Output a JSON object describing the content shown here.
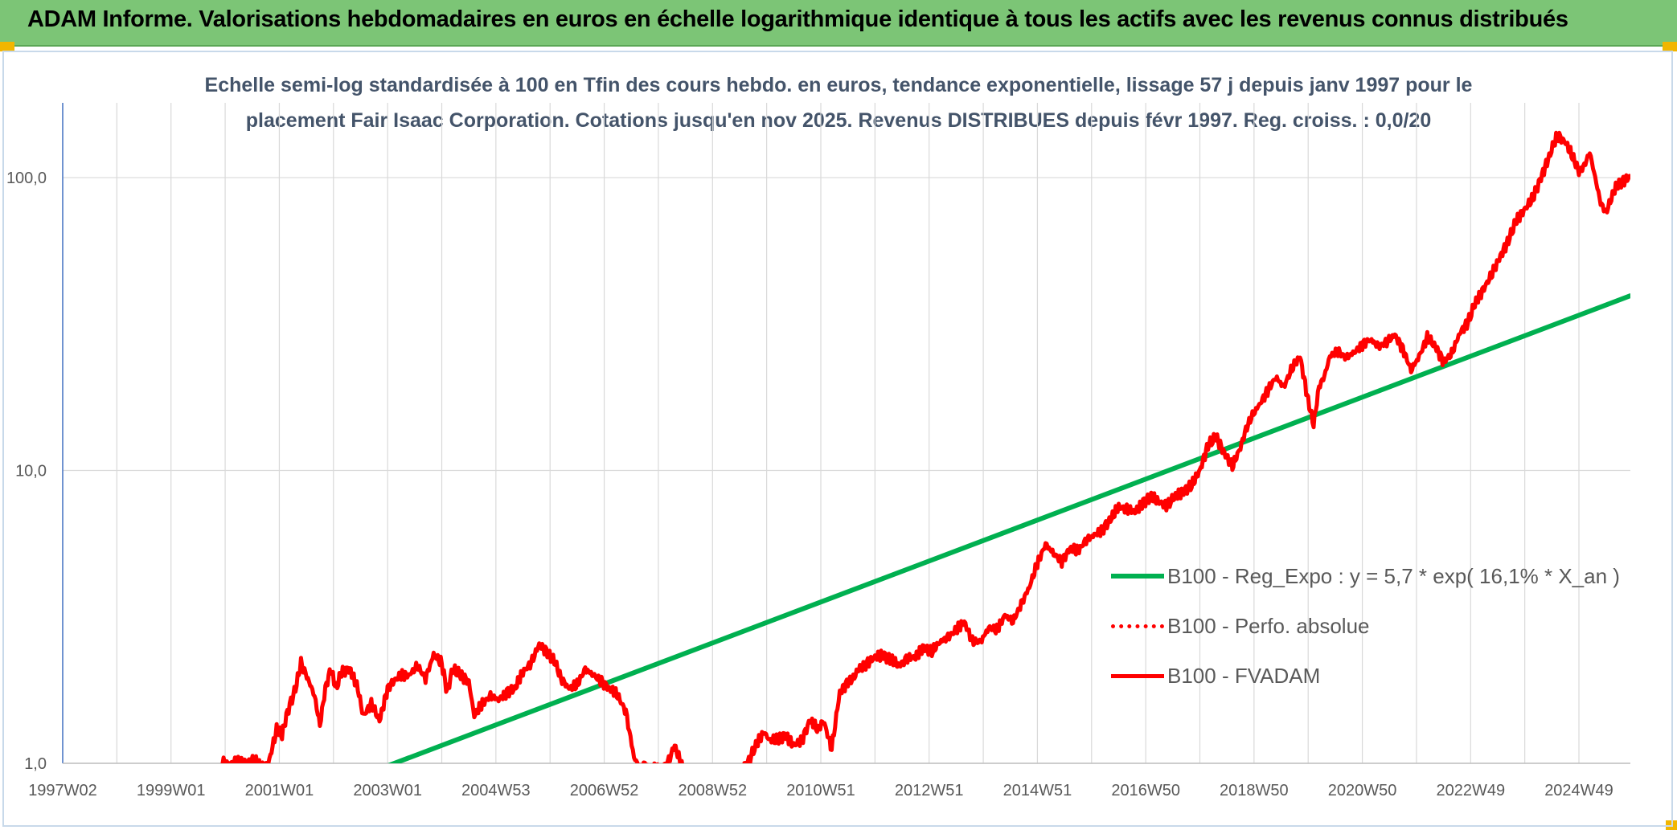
{
  "banner": {
    "title": "ADAM Informe. Valorisations hebdomadaires en euros en échelle logarithmique identique à tous les actifs avec les revenus connus distribués"
  },
  "colors": {
    "banner_bg": "#7cc576",
    "trend": "#00b050",
    "series": "#ff0000",
    "grid": "#d9d9d9",
    "axis": "#4472c4",
    "corner": "#f2b600"
  },
  "chart_data": {
    "type": "line",
    "title_lines": [
      "Echelle semi-log standardisée à 100 en Tfin des cours hebdo. en euros, tendance exponentielle, lissage 57 j depuis janv 1997 pour le",
      "placement Fair Isaac Corporation.  Cotations jusqu'en nov 2025. Revenus DISTRIBUES depuis févr 1997.  Reg. croiss. : 0,0/20"
    ],
    "y_scale": "log",
    "ylim": [
      1,
      180
    ],
    "y_ticks": [
      {
        "value": 1,
        "label": "1,0"
      },
      {
        "value": 10,
        "label": "10,0"
      },
      {
        "value": 100,
        "label": "100,0"
      }
    ],
    "xlim": [
      1997.0,
      2025.95
    ],
    "x_ticks": [
      {
        "value": 1997.0,
        "label": "1997W02"
      },
      {
        "value": 1999.0,
        "label": "1999W01"
      },
      {
        "value": 2001.0,
        "label": "2001W01"
      },
      {
        "value": 2003.0,
        "label": "2003W01"
      },
      {
        "value": 2005.0,
        "label": "2004W53"
      },
      {
        "value": 2007.0,
        "label": "2006W52"
      },
      {
        "value": 2009.0,
        "label": "2008W52"
      },
      {
        "value": 2011.0,
        "label": "2010W51"
      },
      {
        "value": 2013.0,
        "label": "2012W51"
      },
      {
        "value": 2015.0,
        "label": "2014W51"
      },
      {
        "value": 2017.0,
        "label": "2016W50"
      },
      {
        "value": 2019.0,
        "label": "2018W50"
      },
      {
        "value": 2021.0,
        "label": "2020W50"
      },
      {
        "value": 2023.0,
        "label": "2022W49"
      },
      {
        "value": 2025.0,
        "label": "2024W49"
      }
    ],
    "legend_position": "right",
    "series": [
      {
        "name": "B100 - Reg_Expo : y = 5,7 * exp( 16,1% *  X_an )",
        "style": "solid-thick",
        "color": "#00b050",
        "x": [
          2003.0,
          2025.95
        ],
        "values": [
          0.98,
          39.5
        ]
      },
      {
        "name": "B100 - Perfo. absolue",
        "style": "dotted",
        "color": "#ff0000",
        "x": [],
        "values": []
      },
      {
        "name": "B100 - FVADAM",
        "style": "solid",
        "color": "#ff0000",
        "x": [
          1999.95,
          2000.05,
          2000.2,
          2000.4,
          2000.55,
          2000.65,
          2000.8,
          2000.95,
          2001.05,
          2001.15,
          2001.3,
          2001.4,
          2001.55,
          2001.65,
          2001.75,
          2001.85,
          2001.95,
          2002.05,
          2002.15,
          2002.3,
          2002.45,
          2002.55,
          2002.7,
          2002.85,
          2003.0,
          2003.1,
          2003.25,
          2003.4,
          2003.55,
          2003.7,
          2003.85,
          2004.0,
          2004.1,
          2004.2,
          2004.35,
          2004.5,
          2004.6,
          2004.75,
          2004.9,
          2005.05,
          2005.2,
          2005.35,
          2005.5,
          2005.65,
          2005.8,
          2005.95,
          2006.1,
          2006.2,
          2006.35,
          2006.5,
          2006.65,
          2006.8,
          2006.95,
          2007.1,
          2007.25,
          2007.4,
          2007.55,
          2007.65,
          2007.75,
          2007.85,
          2008.0,
          2008.15,
          2008.3,
          2008.45,
          2009.55,
          2009.65,
          2009.8,
          2009.95,
          2010.05,
          2010.2,
          2010.35,
          2010.5,
          2010.65,
          2010.8,
          2010.95,
          2011.05,
          2011.2,
          2011.35,
          2011.5,
          2011.6,
          2011.7,
          2011.85,
          2012.0,
          2012.15,
          2012.3,
          2012.45,
          2012.6,
          2012.75,
          2012.9,
          2013.05,
          2013.2,
          2013.35,
          2013.5,
          2013.65,
          2013.8,
          2013.95,
          2014.1,
          2014.25,
          2014.4,
          2014.55,
          2014.7,
          2014.85,
          2015.0,
          2015.15,
          2015.3,
          2015.45,
          2015.6,
          2015.75,
          2015.9,
          2016.05,
          2016.2,
          2016.35,
          2016.5,
          2016.65,
          2016.8,
          2016.95,
          2017.1,
          2017.25,
          2017.4,
          2017.55,
          2017.7,
          2017.85,
          2018.0,
          2018.15,
          2018.3,
          2018.45,
          2018.6,
          2018.75,
          2018.85,
          2018.95,
          2019.1,
          2019.25,
          2019.4,
          2019.55,
          2019.7,
          2019.85,
          2020.0,
          2020.1,
          2020.2,
          2020.3,
          2020.4,
          2020.55,
          2020.7,
          2020.85,
          2021.0,
          2021.15,
          2021.3,
          2021.45,
          2021.6,
          2021.75,
          2021.9,
          2022.05,
          2022.2,
          2022.35,
          2022.5,
          2022.65,
          2022.8,
          2022.95,
          2023.1,
          2023.25,
          2023.4,
          2023.55,
          2023.7,
          2023.85,
          2024.0,
          2024.15,
          2024.3,
          2024.45,
          2024.6,
          2024.75,
          2024.9,
          2025.0,
          2025.1,
          2025.2,
          2025.3,
          2025.4,
          2025.5,
          2025.6,
          2025.7,
          2025.8,
          2025.95
        ],
        "values": [
          1.02,
          0.99,
          1.01,
          0.99,
          1.04,
          0.98,
          1.0,
          1.3,
          1.25,
          1.5,
          1.8,
          2.2,
          1.9,
          1.7,
          1.35,
          1.8,
          2.1,
          1.8,
          2.05,
          2.1,
          1.8,
          1.45,
          1.6,
          1.4,
          1.8,
          1.9,
          2.0,
          2.0,
          2.15,
          1.95,
          2.35,
          2.2,
          1.75,
          2.1,
          2.0,
          1.9,
          1.45,
          1.6,
          1.7,
          1.65,
          1.75,
          1.8,
          2.05,
          2.2,
          2.55,
          2.4,
          2.2,
          1.95,
          1.8,
          1.85,
          2.1,
          2.0,
          1.9,
          1.8,
          1.7,
          1.5,
          1.05,
          0.97,
          1.0,
          0.95,
          0.96,
          0.98,
          1.15,
          0.96,
          0.96,
          1.0,
          1.15,
          1.28,
          1.2,
          1.2,
          1.25,
          1.15,
          1.2,
          1.4,
          1.3,
          1.4,
          1.12,
          1.75,
          1.9,
          1.95,
          2.1,
          2.2,
          2.3,
          2.35,
          2.25,
          2.15,
          2.3,
          2.3,
          2.5,
          2.4,
          2.6,
          2.7,
          2.85,
          3.05,
          2.6,
          2.6,
          2.9,
          2.85,
          3.2,
          3.05,
          3.5,
          4.0,
          4.8,
          5.6,
          5.2,
          4.9,
          5.4,
          5.3,
          5.8,
          6.0,
          6.3,
          6.8,
          7.5,
          7.4,
          7.2,
          7.8,
          8.1,
          7.8,
          7.6,
          8.2,
          8.5,
          8.9,
          10.0,
          12.2,
          13.0,
          11.5,
          10.3,
          12.0,
          13.8,
          15.2,
          16.8,
          18.7,
          20.8,
          19.3,
          22.3,
          24.5,
          17.3,
          14.3,
          19.3,
          21.0,
          24.5,
          25.5,
          24.3,
          25.3,
          27.0,
          28.0,
          26.5,
          27.5,
          29.0,
          26.0,
          22.0,
          24.5,
          28.5,
          26.5,
          23.5,
          25.0,
          29.5,
          32.0,
          38.0,
          42.0,
          47.0,
          54.0,
          61.0,
          72.0,
          78.0,
          85.0,
          100.0,
          118.0,
          140.0,
          132.0,
          116.0,
          105.0,
          110.0,
          122.0,
          100.0,
          82.0,
          76.0,
          85.0,
          95.0,
          97.0,
          101.0
        ]
      }
    ]
  }
}
